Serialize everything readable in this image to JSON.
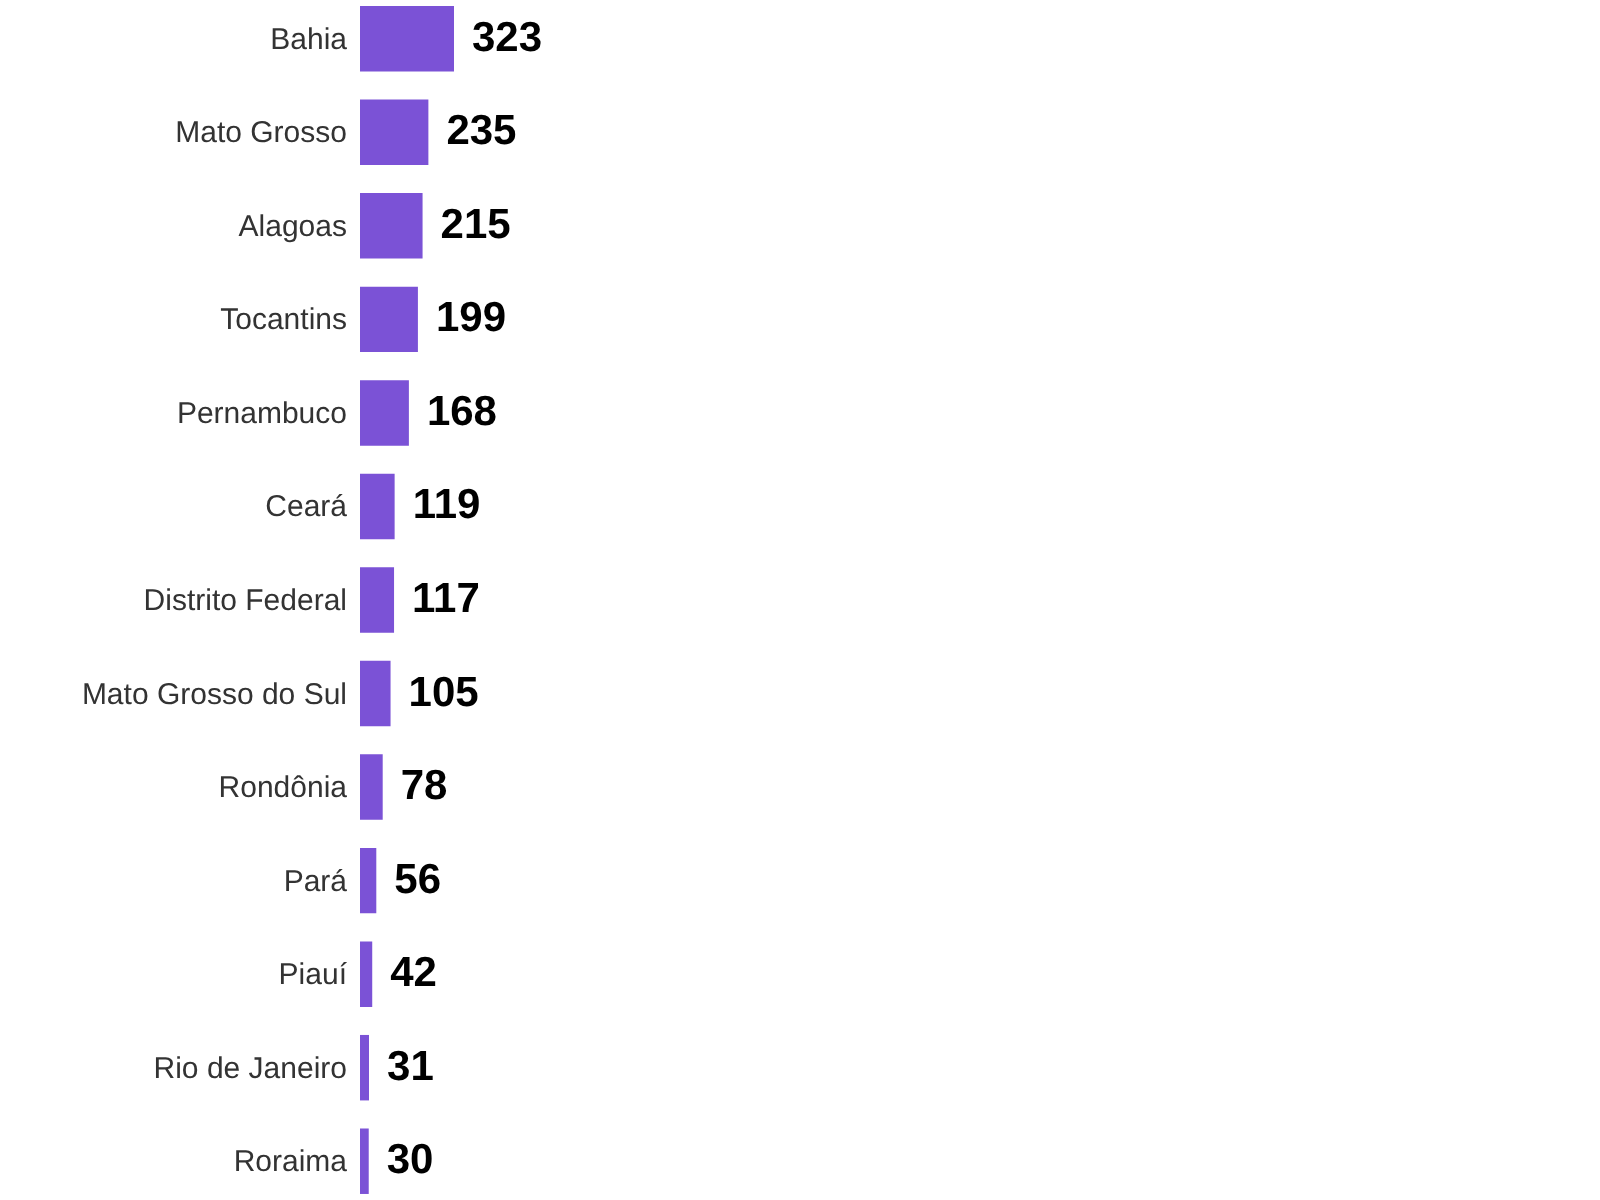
{
  "chart_data": {
    "type": "bar",
    "orientation": "horizontal",
    "data_labels": true,
    "categories": [
      "Bahia",
      "Mato Grosso",
      "Alagoas",
      "Tocantins",
      "Pernambuco",
      "Ceará",
      "Distrito Federal",
      "Mato Grosso do Sul",
      "Rondônia",
      "Pará",
      "Piauí",
      "Rio de Janeiro",
      "Roraima"
    ],
    "values": [
      323,
      235,
      215,
      199,
      168,
      119,
      117,
      105,
      78,
      56,
      42,
      31,
      30
    ],
    "color": "#7b52d6"
  }
}
